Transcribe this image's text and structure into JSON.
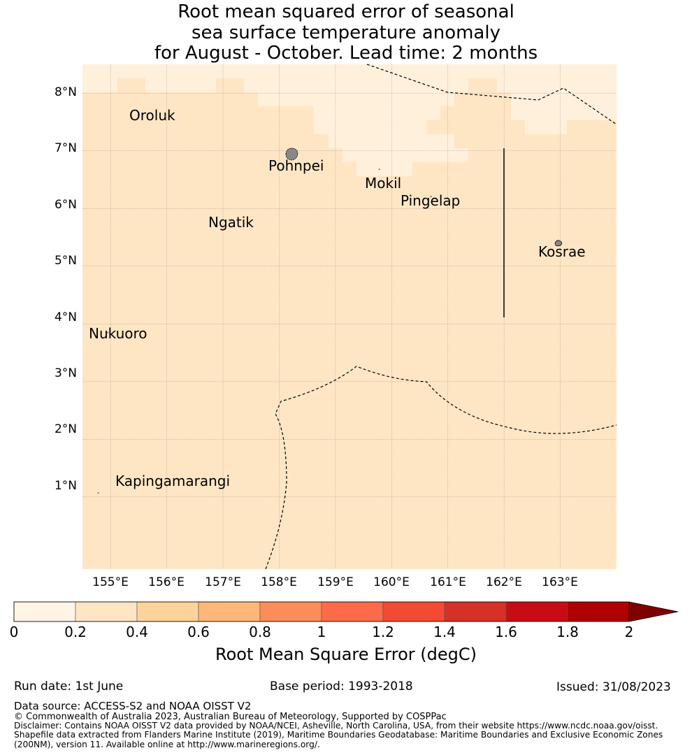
{
  "title": {
    "line1": "Root mean squared error of seasonal",
    "line2": "sea surface temperature anomaly",
    "line3": "for August - October. Lead time: 2 months"
  },
  "map": {
    "lon_range": [
      154.5,
      164.0
    ],
    "lat_range": [
      -0.25,
      8.5
    ],
    "lat_ticks": [
      {
        "value": 8,
        "label": "8°N"
      },
      {
        "value": 7,
        "label": "7°N"
      },
      {
        "value": 6,
        "label": "6°N"
      },
      {
        "value": 5,
        "label": "5°N"
      },
      {
        "value": 4,
        "label": "4°N"
      },
      {
        "value": 3,
        "label": "3°N"
      },
      {
        "value": 2,
        "label": "2°N"
      },
      {
        "value": 1,
        "label": "1°N"
      }
    ],
    "lon_ticks": [
      {
        "value": 155,
        "label": "155°E"
      },
      {
        "value": 156,
        "label": "156°E"
      },
      {
        "value": 157,
        "label": "157°E"
      },
      {
        "value": 158,
        "label": "158°E"
      },
      {
        "value": 159,
        "label": "159°E"
      },
      {
        "value": 160,
        "label": "160°E"
      },
      {
        "value": 161,
        "label": "161°E"
      },
      {
        "value": 162,
        "label": "162°E"
      },
      {
        "value": 163,
        "label": "163°E"
      }
    ],
    "gridlines": true,
    "background_color": "#fee6c5",
    "low_error_color": "#fff0dc",
    "islands": [
      {
        "name": "Oroluk",
        "lon": 155.97,
        "lat": 7.6
      },
      {
        "name": "Pohnpei",
        "lon": 158.22,
        "lat": 6.88
      },
      {
        "name": "Mokil",
        "lon": 159.78,
        "lat": 6.68
      },
      {
        "name": "Pingelap",
        "lon": 160.7,
        "lat": 6.21
      },
      {
        "name": "Ngatik",
        "lon": 157.14,
        "lat": 5.79
      },
      {
        "name": "Kosrae",
        "lon": 162.97,
        "lat": 5.32
      },
      {
        "name": "Nukuoro",
        "lon": 154.95,
        "lat": 3.85
      },
      {
        "name": "Kapingamarangi",
        "lon": 154.78,
        "lat": 1.07
      }
    ]
  },
  "colorbar": {
    "label": "Root Mean Square Error (degC)",
    "ticks": [
      "0",
      "0.2",
      "0.4",
      "0.6",
      "0.8",
      "1",
      "1.2",
      "1.4",
      "1.6",
      "1.8",
      "2"
    ],
    "colors": [
      "#fff5e6",
      "#fee6c5",
      "#fdd39c",
      "#fdb879",
      "#fc8d59",
      "#fb6a4a",
      "#f34a36",
      "#d73027",
      "#c80c13",
      "#b00000"
    ],
    "extend_color": "#800000"
  },
  "footer": {
    "run_date": "Run date: 1st June",
    "base_period": "Base period: 1993-2018",
    "issued": "Issued: 31/08/2023",
    "data_source": "Data source: ACCESS-S2 and NOAA OISST V2",
    "copyright": "© Commonwealth of Australia 2023, Australian Bureau of Meteorology, Supported by COSPPac",
    "disclaimer_line1": "Disclaimer: Contains NOAA OISST V2 data provided by NOAA/NCEI, Asheville, North Carolina, USA, from their website https://www.ncdc.noaa.gov/oisst.",
    "disclaimer_line2": "Shapefile data extracted from Flanders Marine Institute (2019), Maritime Boundaries Geodatabase: Maritime Boundaries and Exclusive Economic Zones",
    "disclaimer_line3": "(200NM), version 11. Available online at http://www.marineregions.org/."
  }
}
